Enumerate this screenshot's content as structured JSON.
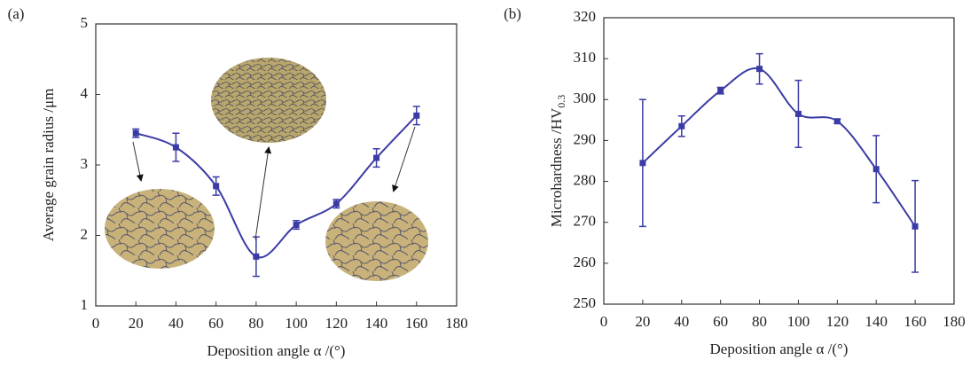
{
  "chart_data": [
    {
      "type": "line",
      "panel_label": "(a)",
      "xlabel": "Deposition angle α /(°)",
      "ylabel": "Average grain radius /μm",
      "x": [
        20,
        40,
        60,
        80,
        100,
        120,
        140,
        160
      ],
      "series": [
        {
          "color": "#3b3ba6",
          "values": [
            3.45,
            3.25,
            2.7,
            1.7,
            2.15,
            2.45,
            3.1,
            3.7
          ],
          "errors": [
            0.06,
            0.2,
            0.13,
            0.28,
            0.06,
            0.06,
            0.13,
            0.13
          ]
        }
      ],
      "xlim": [
        0,
        180
      ],
      "xticks": [
        0,
        20,
        40,
        60,
        80,
        100,
        120,
        140,
        160,
        180
      ],
      "ylim": [
        1,
        5
      ],
      "yticks": [
        1,
        2,
        3,
        4,
        5
      ]
    },
    {
      "type": "line",
      "panel_label": "(b)",
      "xlabel": "Deposition angle α /(°)",
      "ylabel": "Microhardness /HV",
      "ylabel_sub": "0.3",
      "x": [
        20,
        40,
        60,
        80,
        100,
        120,
        140,
        160
      ],
      "series": [
        {
          "color": "#3b3ba6",
          "values": [
            284.5,
            293.5,
            302.2,
            307.5,
            296.5,
            294.7,
            283,
            269
          ],
          "errors": [
            15.5,
            2.5,
            0.8,
            3.7,
            8.2,
            0.5,
            8.2,
            11.2
          ]
        }
      ],
      "xlim": [
        0,
        180
      ],
      "xticks": [
        0,
        20,
        40,
        60,
        80,
        100,
        120,
        140,
        160,
        180
      ],
      "ylim": [
        250,
        320
      ],
      "yticks": [
        250,
        260,
        270,
        280,
        290,
        300,
        310,
        320
      ]
    }
  ]
}
